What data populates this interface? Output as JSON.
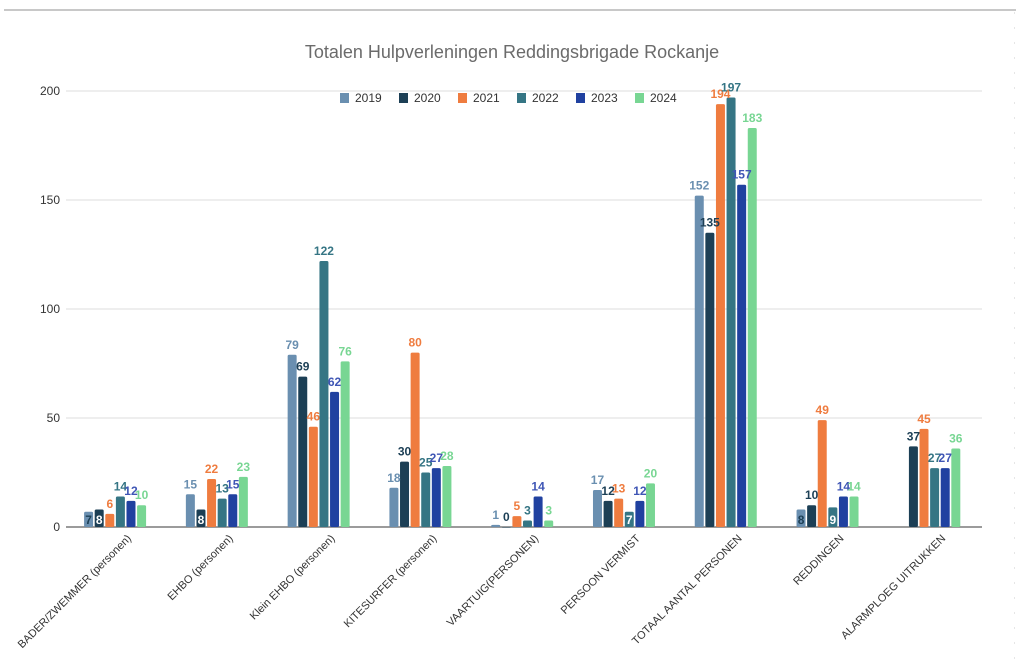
{
  "chart_data": {
    "type": "bar",
    "title": "Totalen Hulpverleningen Reddingsbrigade Rockanje",
    "xlabel": "",
    "ylabel": "",
    "ylim": [
      0,
      200
    ],
    "yticks": [
      0,
      50,
      100,
      150,
      200
    ],
    "grid": true,
    "legend_position": "top-center",
    "categories": [
      "BADER/ZWEMMER (personen)",
      "EHBO (personen)",
      "Klein EHBO (personen)",
      "KITESURFER (personen)",
      "VAARTUIG(PERSONEN)",
      "PERSOON VERMIST",
      "TOTAAL AANTAL PERSONEN",
      "REDDINGEN",
      "ALARMPLOEG UITRUKKEN"
    ],
    "series": [
      {
        "name": "2019",
        "color": "#6a8fb0",
        "label_color": "#6a8fb0",
        "values": [
          7,
          15,
          79,
          18,
          1,
          17,
          152,
          8,
          null
        ]
      },
      {
        "name": "2020",
        "color": "#1c3f55",
        "label_color": "#1c3f55",
        "values": [
          8,
          8,
          69,
          30,
          0,
          12,
          135,
          10,
          37
        ]
      },
      {
        "name": "2021",
        "color": "#ef7c3f",
        "label_color": "#ef7c3f",
        "values": [
          6,
          22,
          46,
          80,
          5,
          13,
          194,
          49,
          45
        ]
      },
      {
        "name": "2022",
        "color": "#357584",
        "label_color": "#357584",
        "values": [
          14,
          13,
          122,
          25,
          3,
          7,
          197,
          9,
          27
        ]
      },
      {
        "name": "2023",
        "color": "#2041a0",
        "label_color": "#3f56b5",
        "values": [
          12,
          15,
          62,
          27,
          14,
          12,
          157,
          14,
          27
        ]
      },
      {
        "name": "2024",
        "color": "#78d693",
        "label_color": "#78d693",
        "values": [
          10,
          23,
          76,
          28,
          3,
          20,
          183,
          14,
          36
        ]
      }
    ]
  }
}
